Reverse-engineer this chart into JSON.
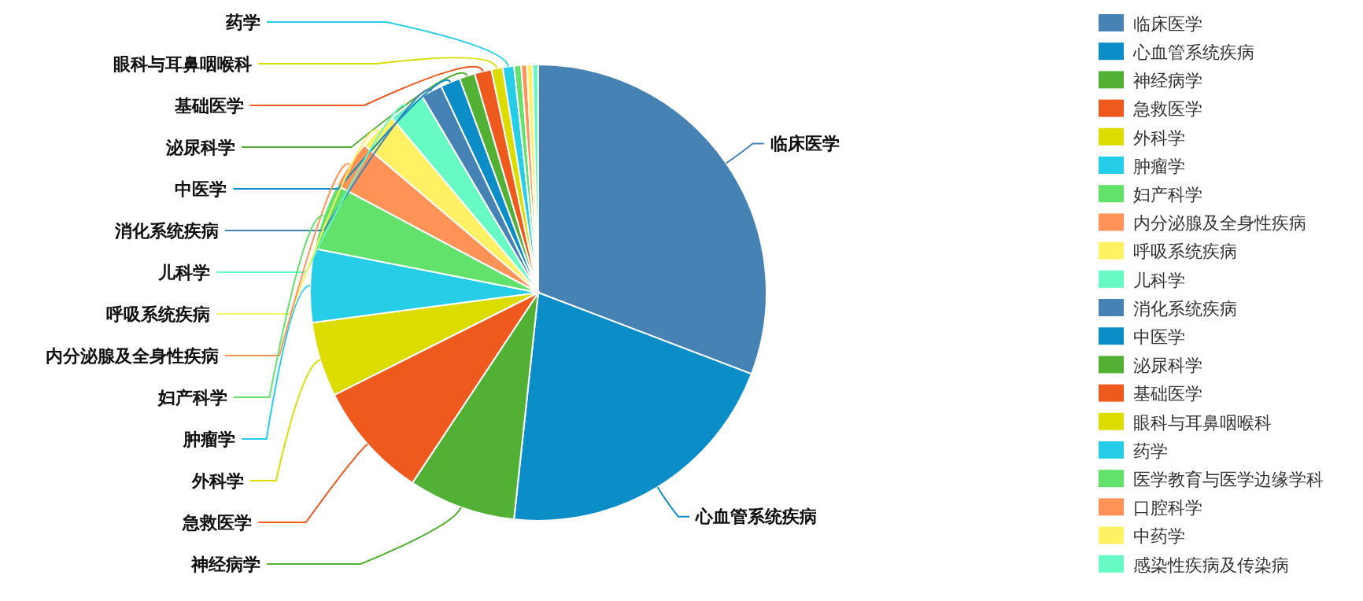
{
  "chart_data": {
    "type": "pie",
    "legend": "right",
    "categories": [
      "临床医学",
      "心血管系统疾病",
      "神经病学",
      "急救医学",
      "外科学",
      "肿瘤学",
      "妇产科学",
      "内分泌腺及全身性疾病",
      "呼吸系统疾病",
      "儿科学",
      "消化系统疾病",
      "中医学",
      "泌尿科学",
      "基础医学",
      "眼科与耳鼻咽喉科",
      "药学",
      "医学教育与医学边缘学科",
      "口腔科学",
      "中药学",
      "感染性疾病及传染病"
    ],
    "values": [
      30.8,
      20.9,
      7.6,
      8.3,
      5.3,
      5.2,
      4.7,
      3.4,
      2.7,
      2.6,
      1.5,
      1.4,
      1.1,
      1.2,
      0.8,
      0.8,
      0.5,
      0.4,
      0.4,
      0.4
    ],
    "colors": [
      "#4682b4",
      "#0b8ec8",
      "#52b135",
      "#ee5a1e",
      "#dcdc00",
      "#25cde6",
      "#63e26b",
      "#ff9256",
      "#fff064",
      "#68fac4",
      "#4682b4",
      "#0b8ec8",
      "#52b135",
      "#ee5a1e",
      "#dcdc00",
      "#25cde6",
      "#63e26b",
      "#ff9256",
      "#fff064",
      "#68fac4"
    ]
  }
}
